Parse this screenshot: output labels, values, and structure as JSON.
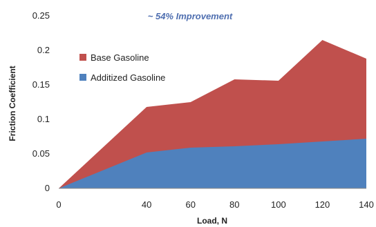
{
  "chart_data": {
    "type": "area",
    "x": [
      0,
      40,
      60,
      80,
      100,
      120,
      140
    ],
    "xticks": [
      "0",
      "40",
      "60",
      "80",
      "100",
      "120",
      "140"
    ],
    "yticks": [
      "0",
      "0.05",
      "0.1",
      "0.15",
      "0.2",
      "0.25"
    ],
    "xlim": [
      0,
      140
    ],
    "ylim": [
      0,
      0.25
    ],
    "xlabel": "Load, N",
    "ylabel": "Friction Coefficient",
    "annotation": "~ 54% Improvement",
    "grid": false,
    "legend_position": "top-left",
    "series": [
      {
        "name": "Base Gasoline",
        "values": [
          0,
          0.118,
          0.125,
          0.158,
          0.156,
          0.215,
          0.188
        ],
        "color": "#c0504d"
      },
      {
        "name": "Additized Gasoline",
        "values": [
          0,
          0.052,
          0.059,
          0.061,
          0.064,
          0.068,
          0.072
        ],
        "color": "#4f81bd"
      }
    ],
    "annotation_color": "#4f6fb0"
  }
}
